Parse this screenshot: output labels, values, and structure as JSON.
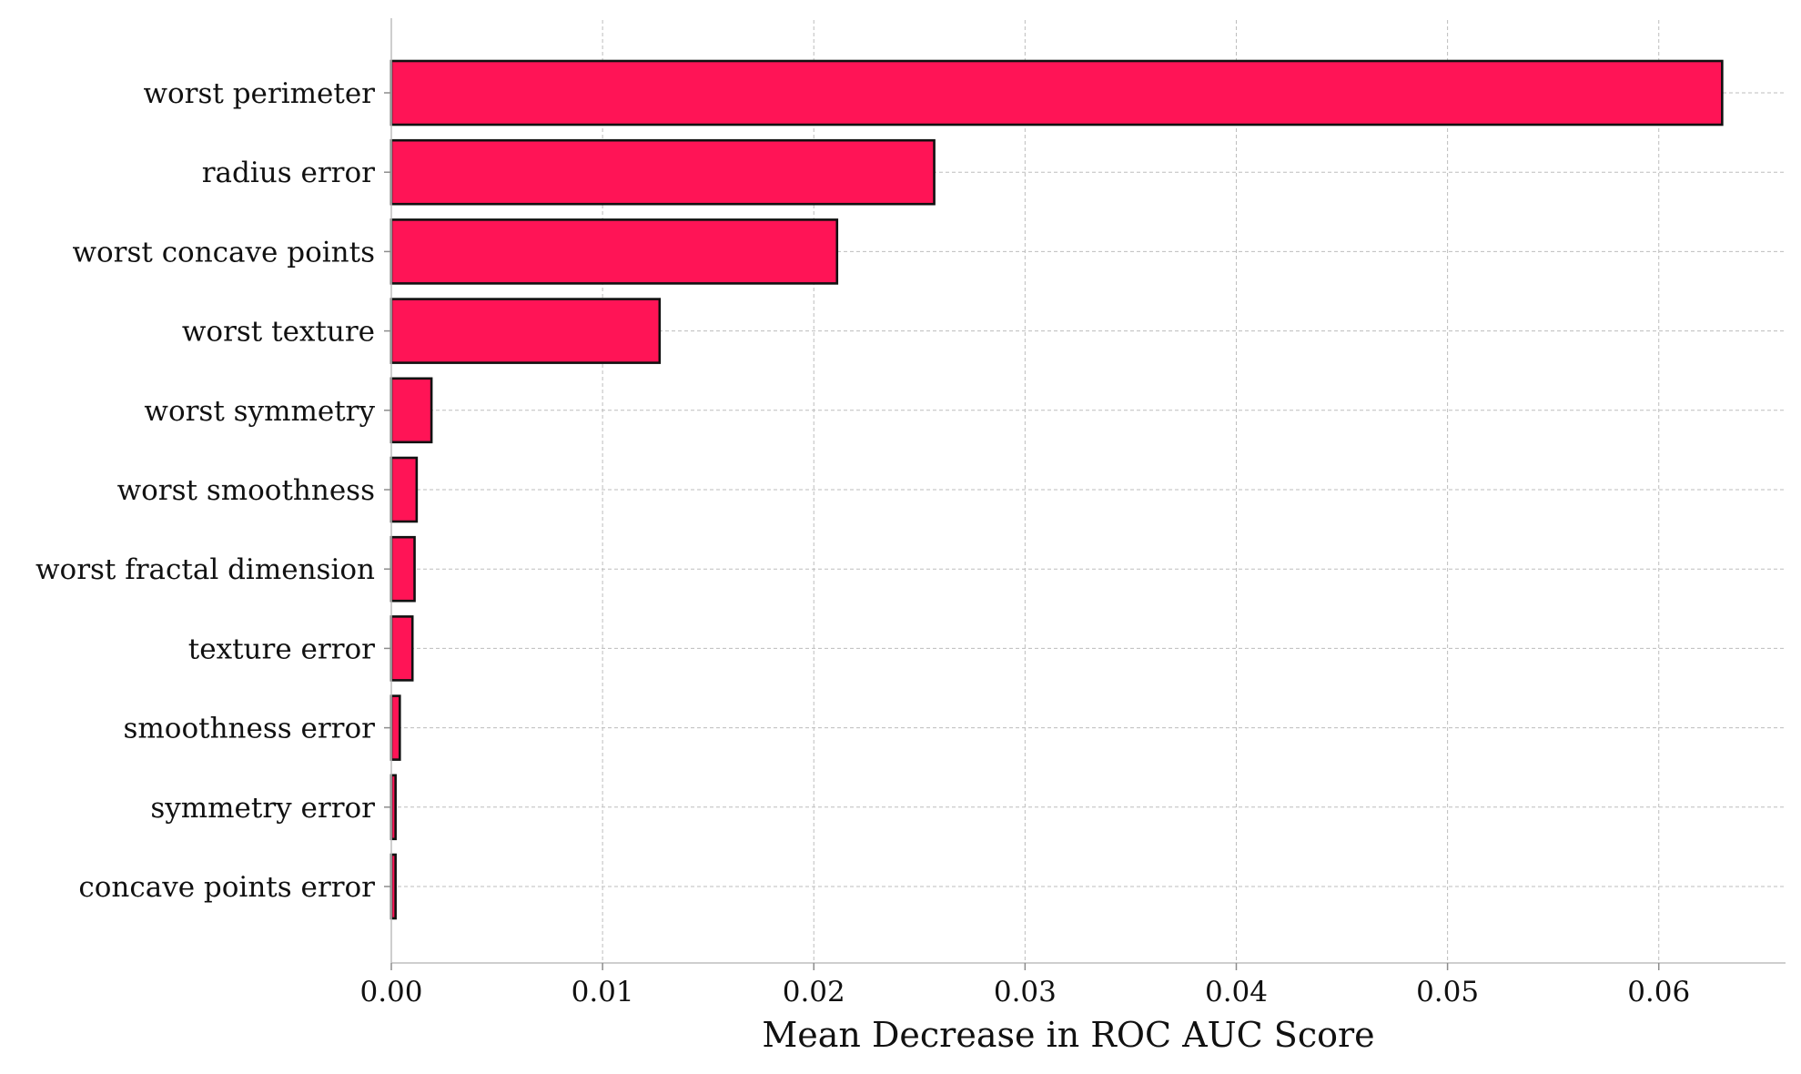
{
  "chart_data": {
    "type": "bar",
    "orientation": "horizontal",
    "categories": [
      "worst perimeter",
      "radius error",
      "worst concave points",
      "worst texture",
      "worst symmetry",
      "worst smoothness",
      "worst fractal dimension",
      "texture error",
      "smoothness error",
      "symmetry error",
      "concave points error"
    ],
    "values": [
      0.063,
      0.0257,
      0.0211,
      0.0127,
      0.0019,
      0.0012,
      0.0011,
      0.001,
      0.0004,
      0.0002,
      0.0002
    ],
    "title": "",
    "xlabel": "Mean Decrease in ROC AUC Score",
    "ylabel": "",
    "xlim": [
      0,
      0.066
    ],
    "xticks": [
      0.0,
      0.01,
      0.02,
      0.03,
      0.04,
      0.05,
      0.06
    ],
    "xtick_labels": [
      "0.00",
      "0.01",
      "0.02",
      "0.03",
      "0.04",
      "0.05",
      "0.06"
    ],
    "grid": true,
    "legend": false,
    "colors": {
      "bar_fill": "#ff1456",
      "bar_edge": "#111111",
      "grid": "#bdbdbd",
      "axis": "#bdbdbd",
      "text": "#111111"
    }
  }
}
